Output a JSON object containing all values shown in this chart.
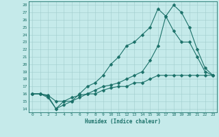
{
  "title": "",
  "xlabel": "Humidex (Indice chaleur)",
  "background_color": "#c5eaea",
  "grid_color": "#a0cccc",
  "line_color": "#1a7068",
  "xlim": [
    -0.5,
    23.5
  ],
  "ylim": [
    13.5,
    28.5
  ],
  "xticks": [
    0,
    1,
    2,
    3,
    4,
    5,
    6,
    7,
    8,
    9,
    10,
    11,
    12,
    13,
    14,
    15,
    16,
    17,
    18,
    19,
    20,
    21,
    22,
    23
  ],
  "yticks": [
    14,
    15,
    16,
    17,
    18,
    19,
    20,
    21,
    22,
    23,
    24,
    25,
    26,
    27,
    28
  ],
  "line1_x": [
    0,
    1,
    2,
    3,
    4,
    5,
    6,
    7,
    8,
    9,
    10,
    11,
    12,
    13,
    14,
    15,
    16,
    17,
    18,
    19,
    20,
    21,
    22,
    23
  ],
  "line1_y": [
    16.0,
    16.0,
    15.8,
    15.0,
    15.0,
    15.5,
    15.8,
    16.0,
    16.5,
    17.0,
    17.2,
    17.5,
    18.0,
    18.5,
    19.0,
    20.5,
    22.5,
    26.5,
    28.0,
    27.0,
    25.0,
    22.0,
    19.5,
    18.5
  ],
  "line2_x": [
    0,
    1,
    2,
    3,
    4,
    5,
    6,
    7,
    8,
    9,
    10,
    11,
    12,
    13,
    14,
    15,
    16,
    17,
    18,
    19,
    20,
    21,
    22,
    23
  ],
  "line2_y": [
    16.0,
    16.0,
    15.7,
    14.0,
    15.0,
    15.0,
    16.0,
    17.0,
    17.5,
    18.5,
    20.0,
    21.0,
    22.5,
    23.0,
    24.0,
    25.0,
    27.5,
    26.5,
    24.5,
    23.0,
    23.0,
    21.0,
    19.0,
    18.5
  ],
  "line3_x": [
    0,
    1,
    2,
    3,
    4,
    5,
    6,
    7,
    8,
    9,
    10,
    11,
    12,
    13,
    14,
    15,
    16,
    17,
    18,
    19,
    20,
    21,
    22,
    23
  ],
  "line3_y": [
    16.0,
    16.0,
    15.5,
    14.0,
    14.5,
    15.0,
    15.5,
    16.0,
    16.0,
    16.5,
    16.8,
    17.0,
    17.0,
    17.5,
    17.5,
    18.0,
    18.5,
    18.5,
    18.5,
    18.5,
    18.5,
    18.5,
    18.5,
    18.5
  ]
}
